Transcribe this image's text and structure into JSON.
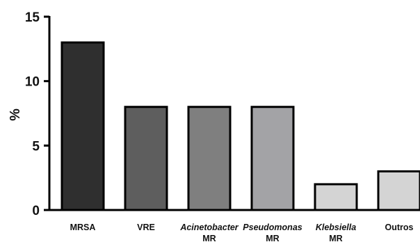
{
  "chart_data": {
    "type": "bar",
    "title": "",
    "xlabel": "",
    "ylabel": "%",
    "ylim": [
      0,
      15
    ],
    "yticks": [
      0,
      5,
      10,
      15
    ],
    "grid": false,
    "legend": "none",
    "categories": [
      {
        "line1": "MRSA",
        "line2": "",
        "italic": false
      },
      {
        "line1": "VRE",
        "line2": "",
        "italic": false
      },
      {
        "line1": "Acinetobacter",
        "line2": "MR",
        "italic": true
      },
      {
        "line1": "Pseudomonas",
        "line2": "MR",
        "italic": true
      },
      {
        "line1": "Klebsiella",
        "line2": "MR",
        "italic": true
      },
      {
        "line1": "Outros",
        "line2": "",
        "italic": false
      }
    ],
    "values": [
      13,
      8,
      8,
      8,
      2,
      3
    ],
    "colors": [
      "#2f2f2f",
      "#5e5e5e",
      "#7f7f7f",
      "#a3a3a6",
      "#d4d4d4",
      "#d4d4d4"
    ],
    "stroke_color": "#000000"
  }
}
